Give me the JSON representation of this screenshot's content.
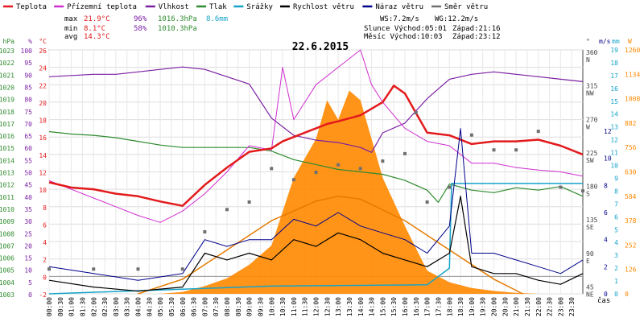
{
  "chart_data": {
    "type": "line",
    "title": "22.6.2015",
    "xlabel": "čas",
    "colors": {
      "temp": "#e31a1c",
      "feel": "#d02fd0",
      "humidity": "#7b1fa2",
      "pressure": "#2e8b2e",
      "rain": "#16a3c9",
      "wind": "#000000",
      "gust": "#00008b",
      "winddir": "#707070",
      "radiation": "#ff8800",
      "sun": "#e57a00"
    },
    "legend": [
      {
        "key": "temp",
        "label": "Teplota"
      },
      {
        "key": "feel",
        "label": "Přízemní teplota"
      },
      {
        "key": "humidity",
        "label": "Vlhkost"
      },
      {
        "key": "pressure",
        "label": "Tlak"
      },
      {
        "key": "rain",
        "label": "Srážky"
      },
      {
        "key": "wind",
        "label": "Rychlost větru"
      },
      {
        "key": "gust",
        "label": "Náraz větru"
      },
      {
        "key": "winddir",
        "label": "Směr větru"
      }
    ],
    "stats": {
      "max": {
        "label": "max",
        "temp": "21.9°C",
        "hum": "96%",
        "press": "1016.3hPa",
        "rain": "8.6mm"
      },
      "min": {
        "label": "min",
        "temp": "8.1°C",
        "hum": "58%",
        "press": "1010.3hPa"
      },
      "avg": {
        "label": "avg",
        "temp": "14.3°C"
      }
    },
    "wind_info": {
      "ws": "WS:7.2m/s",
      "wg": "WG:12.2m/s"
    },
    "sun_info": {
      "sunrise": "Slunce Východ:05:01",
      "sunset": "Západ:21:16"
    },
    "moon_info": {
      "moonrise": "Měsíc  Východ:10:03",
      "moonset": "Západ:23:12"
    },
    "axes": {
      "hpa": {
        "label": "hPa",
        "ticks": [
          "1023",
          "1022",
          "1021",
          "1020",
          "1019",
          "1018",
          "1017",
          "1016",
          "1015",
          "1014",
          "1013",
          "1012",
          "1011",
          "1010",
          "1009",
          "1008",
          "1007",
          "1006",
          "1005",
          "1004",
          "1003"
        ],
        "range": [
          1003,
          1023
        ]
      },
      "pct": {
        "label": "%",
        "ticks": [
          "100",
          "95",
          "90",
          "85",
          "80",
          "75",
          "70",
          "65",
          "60",
          "55",
          "50",
          "45",
          "40",
          "35",
          "30",
          "25",
          "20",
          "15",
          "10",
          "5",
          "0"
        ],
        "range": [
          0,
          100
        ]
      },
      "temp": {
        "label": "°C",
        "ticks": [
          "26",
          "24",
          "22",
          "20",
          "18",
          "16",
          "14",
          "12",
          "10",
          "8",
          "6",
          "4",
          "2",
          "0",
          "-2"
        ],
        "range": [
          -2,
          26
        ]
      },
      "dir": {
        "label": "°",
        "ticks": [
          "360 N",
          "315 NW",
          "270 W",
          "225 SW",
          "180 S",
          "135 SE",
          "90 E",
          "45 NE"
        ],
        "range": [
          0,
          360
        ]
      },
      "ms": {
        "label": "m/s",
        "ticks": [
          "12",
          "10",
          "8",
          "6",
          "4",
          "2",
          "0"
        ],
        "range": [
          0,
          18
        ]
      },
      "mm": {
        "label": "mm",
        "ticks": [
          "19",
          "18",
          "17",
          "16",
          "15",
          "14",
          "13",
          "12",
          "11",
          "10",
          "9",
          "8",
          "7",
          "6",
          "5",
          "4",
          "3",
          "2",
          "1",
          "0"
        ],
        "range": [
          0,
          19
        ]
      },
      "wm2": {
        "label": "W",
        "ticks": [
          "1260",
          "1134",
          "1008",
          "882",
          "756",
          "630",
          "504",
          "378",
          "252",
          "126",
          "0"
        ],
        "range": [
          0,
          1260
        ]
      }
    },
    "time_ticks": [
      "00:00",
      "00:30",
      "01:00",
      "01:30",
      "02:00",
      "02:30",
      "03:00",
      "03:30",
      "04:00",
      "04:30",
      "05:00",
      "05:30",
      "06:00",
      "06:30",
      "07:00",
      "07:30",
      "08:00",
      "08:30",
      "09:00",
      "09:30",
      "10:00",
      "10:30",
      "11:00",
      "11:30",
      "12:00",
      "12:30",
      "13:00",
      "13:30",
      "14:00",
      "14:30",
      "15:00",
      "15:30",
      "16:00",
      "16:30",
      "17:00",
      "17:30",
      "18:00",
      "18:30",
      "19:00",
      "19:30",
      "20:00",
      "20:30",
      "21:00",
      "21:30",
      "22:00",
      "22:30",
      "23:00",
      "23:30"
    ],
    "series": {
      "temperature_C": [
        [
          0,
          10.8
        ],
        [
          1,
          10.2
        ],
        [
          2,
          10
        ],
        [
          3,
          9.5
        ],
        [
          4,
          9.2
        ],
        [
          5,
          8.6
        ],
        [
          6,
          8.1
        ],
        [
          7,
          10.5
        ],
        [
          8,
          12.5
        ],
        [
          9,
          14.3
        ],
        [
          10,
          14.7
        ],
        [
          10.5,
          15.5
        ],
        [
          11,
          16
        ],
        [
          12,
          17
        ],
        [
          12.5,
          17.5
        ],
        [
          13,
          17.8
        ],
        [
          14,
          18.5
        ],
        [
          15,
          20
        ],
        [
          15.5,
          21.9
        ],
        [
          16,
          21
        ],
        [
          17,
          16.5
        ],
        [
          18,
          16.2
        ],
        [
          19,
          15.2
        ],
        [
          20,
          15.5
        ],
        [
          21,
          15.5
        ],
        [
          22,
          15.7
        ],
        [
          23,
          15
        ],
        [
          24,
          14
        ]
      ],
      "feel_temp_C": [
        [
          0,
          11
        ],
        [
          2,
          9
        ],
        [
          3,
          8
        ],
        [
          4,
          7
        ],
        [
          5,
          6.2
        ],
        [
          6,
          7.5
        ],
        [
          7,
          9.5
        ],
        [
          8,
          12
        ],
        [
          9,
          15
        ],
        [
          10,
          14.5
        ],
        [
          10.5,
          24
        ],
        [
          11,
          18
        ],
        [
          12,
          22
        ],
        [
          13,
          24
        ],
        [
          14,
          26
        ],
        [
          14.5,
          22
        ],
        [
          15,
          20
        ],
        [
          16,
          17
        ],
        [
          17,
          15.5
        ],
        [
          18,
          15
        ],
        [
          19,
          13
        ],
        [
          20,
          13
        ],
        [
          21,
          12.5
        ],
        [
          22,
          12.2
        ],
        [
          23,
          12
        ],
        [
          24,
          11.5
        ]
      ],
      "humidity_pct": [
        [
          0,
          89
        ],
        [
          2,
          90
        ],
        [
          3,
          90
        ],
        [
          4,
          91
        ],
        [
          5,
          92
        ],
        [
          6,
          93
        ],
        [
          7,
          92
        ],
        [
          8,
          89
        ],
        [
          9,
          86
        ],
        [
          10,
          72
        ],
        [
          11,
          65
        ],
        [
          12,
          63
        ],
        [
          13,
          62
        ],
        [
          14,
          60
        ],
        [
          14.5,
          58
        ],
        [
          15,
          66
        ],
        [
          16,
          70
        ],
        [
          17,
          80
        ],
        [
          18,
          88
        ],
        [
          19,
          90
        ],
        [
          20,
          91
        ],
        [
          21,
          90
        ],
        [
          22,
          89
        ],
        [
          23,
          88
        ],
        [
          24,
          87
        ]
      ],
      "pressure_hPa": [
        [
          0,
          1016.3
        ],
        [
          1,
          1016.1
        ],
        [
          2,
          1016
        ],
        [
          3,
          1015.8
        ],
        [
          4,
          1015.5
        ],
        [
          5,
          1015.2
        ],
        [
          6,
          1015
        ],
        [
          7,
          1015
        ],
        [
          8,
          1015
        ],
        [
          9,
          1015
        ],
        [
          10,
          1014.7
        ],
        [
          11,
          1014
        ],
        [
          12,
          1013.6
        ],
        [
          13,
          1013.2
        ],
        [
          14,
          1013
        ],
        [
          15,
          1012.8
        ],
        [
          16,
          1012.3
        ],
        [
          17,
          1011.5
        ],
        [
          17.5,
          1010.5
        ],
        [
          18,
          1012
        ],
        [
          19,
          1011.5
        ],
        [
          20,
          1011.3
        ],
        [
          21,
          1011.7
        ],
        [
          22,
          1011.5
        ],
        [
          23,
          1011.8
        ],
        [
          24,
          1011
        ]
      ],
      "rain_total_mm": [
        [
          0,
          0
        ],
        [
          10,
          0.6
        ],
        [
          17,
          0.7
        ],
        [
          18,
          2
        ],
        [
          18.1,
          8.6
        ],
        [
          24,
          8.6
        ]
      ],
      "wind_ms": [
        [
          0,
          1
        ],
        [
          2,
          0.5
        ],
        [
          4,
          0.2
        ],
        [
          6,
          0.5
        ],
        [
          7,
          3
        ],
        [
          8,
          2.5
        ],
        [
          9,
          3
        ],
        [
          10,
          2.5
        ],
        [
          11,
          4
        ],
        [
          12,
          3.5
        ],
        [
          13,
          4.5
        ],
        [
          14,
          4
        ],
        [
          15,
          3
        ],
        [
          16,
          2.5
        ],
        [
          17,
          2
        ],
        [
          18,
          3
        ],
        [
          18.5,
          7.2
        ],
        [
          19,
          2
        ],
        [
          20,
          1.5
        ],
        [
          21,
          1.5
        ],
        [
          22,
          1
        ],
        [
          23,
          0.7
        ],
        [
          24,
          1.5
        ]
      ],
      "gust_ms": [
        [
          0,
          2
        ],
        [
          2,
          1.5
        ],
        [
          4,
          1
        ],
        [
          6,
          1.5
        ],
        [
          7,
          4
        ],
        [
          8,
          3.5
        ],
        [
          9,
          4
        ],
        [
          10,
          4
        ],
        [
          11,
          5.5
        ],
        [
          12,
          5
        ],
        [
          13,
          6
        ],
        [
          14,
          5
        ],
        [
          15,
          4.5
        ],
        [
          16,
          4
        ],
        [
          17,
          3
        ],
        [
          18,
          5
        ],
        [
          18.5,
          12.2
        ],
        [
          19,
          3
        ],
        [
          20,
          3
        ],
        [
          21,
          2.5
        ],
        [
          22,
          2
        ],
        [
          23,
          1.5
        ],
        [
          24,
          2.5
        ]
      ],
      "wind_dir_deg": [
        [
          0,
          70
        ],
        [
          2,
          70
        ],
        [
          4,
          70
        ],
        [
          6,
          70
        ],
        [
          7,
          120
        ],
        [
          8,
          150
        ],
        [
          9,
          160
        ],
        [
          10,
          205
        ],
        [
          11,
          190
        ],
        [
          12,
          200
        ],
        [
          13,
          210
        ],
        [
          14,
          205
        ],
        [
          15,
          215
        ],
        [
          16,
          225
        ],
        [
          16.5,
          280
        ],
        [
          17,
          160
        ],
        [
          18,
          180
        ],
        [
          19,
          250
        ],
        [
          20,
          230
        ],
        [
          21,
          230
        ],
        [
          22,
          255
        ],
        [
          23,
          180
        ],
        [
          24,
          175
        ]
      ],
      "radiation_Wm2": [
        [
          0,
          0
        ],
        [
          5,
          0
        ],
        [
          6,
          10
        ],
        [
          7,
          40
        ],
        [
          8,
          80
        ],
        [
          9,
          150
        ],
        [
          10,
          250
        ],
        [
          11,
          600
        ],
        [
          12,
          800
        ],
        [
          12.5,
          1000
        ],
        [
          13,
          900
        ],
        [
          13.5,
          1050
        ],
        [
          14,
          1000
        ],
        [
          14.5,
          800
        ],
        [
          15,
          600
        ],
        [
          16,
          350
        ],
        [
          17,
          120
        ],
        [
          18,
          60
        ],
        [
          19,
          30
        ],
        [
          20,
          15
        ],
        [
          21,
          5
        ],
        [
          22,
          0
        ],
        [
          24,
          0
        ]
      ],
      "sun_elevation": [
        [
          4,
          0
        ],
        [
          6,
          0.15
        ],
        [
          8,
          0.45
        ],
        [
          10,
          0.75
        ],
        [
          12,
          0.95
        ],
        [
          13,
          1
        ],
        [
          14,
          0.97
        ],
        [
          16,
          0.75
        ],
        [
          18,
          0.45
        ],
        [
          20,
          0.15
        ],
        [
          21.3,
          0
        ]
      ]
    }
  }
}
